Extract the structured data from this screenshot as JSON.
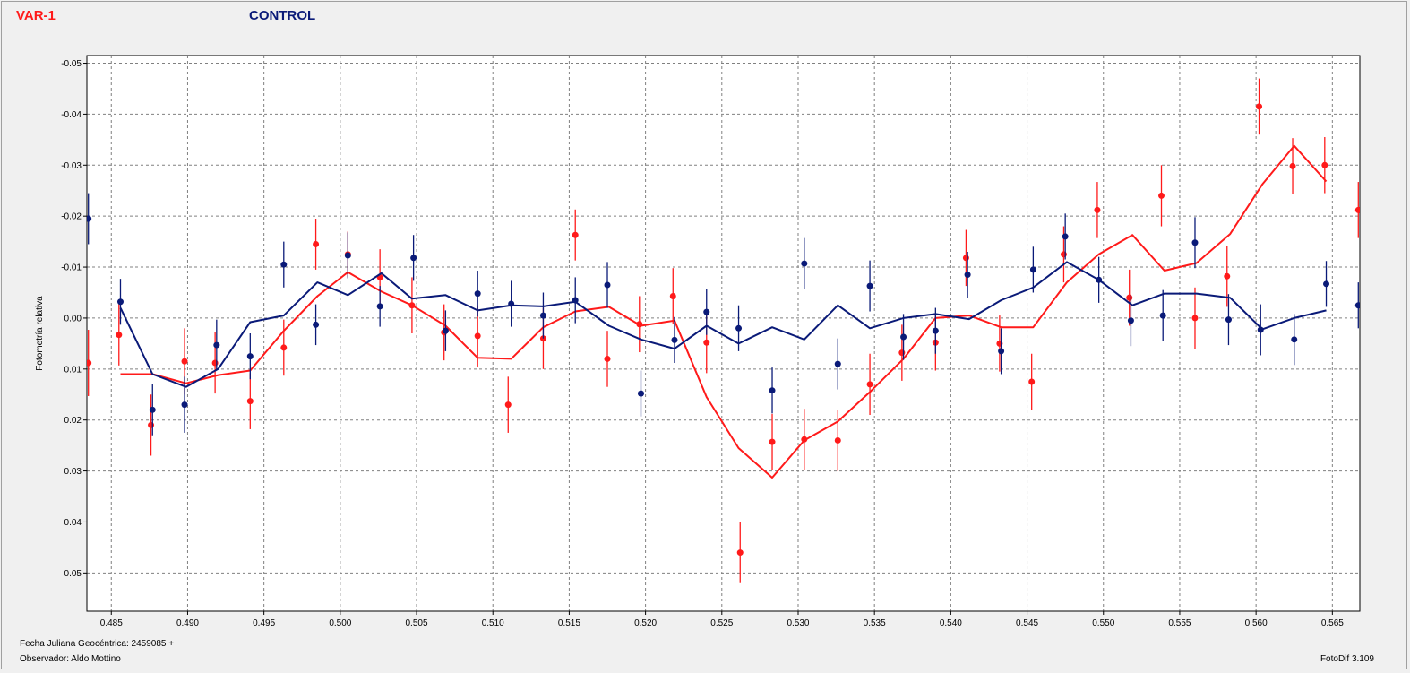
{
  "legend": {
    "var_label": "VAR-1",
    "control_label": "CONTROL"
  },
  "footer": {
    "date_label": "Fecha Juliana Geocéntrica: 2459085 +",
    "observer_label": "Observador: Aldo Mottino",
    "software": "FotoDif 3.109"
  },
  "colors": {
    "var": "#ff1a1a",
    "control": "#0a1a78",
    "background": "#f0f0f0",
    "plot_bg": "#ffffff",
    "grid": "#808080"
  },
  "chart_data": {
    "type": "scatter",
    "xlabel": "",
    "ylabel": "Fotometría relativa",
    "xlim": [
      0.4834,
      0.5668
    ],
    "ylim": [
      0.0575,
      -0.0515
    ],
    "y_inverted": true,
    "grid": true,
    "x_ticks": [
      0.485,
      0.49,
      0.495,
      0.5,
      0.505,
      0.51,
      0.515,
      0.52,
      0.525,
      0.53,
      0.535,
      0.54,
      0.545,
      0.55,
      0.555,
      0.56,
      0.565
    ],
    "x_tick_labels": [
      "0.485",
      "0.490",
      "0.495",
      "0.500",
      "0.505",
      "0.510",
      "0.515",
      "0.520",
      "0.525",
      "0.530",
      "0.535",
      "0.540",
      "0.545",
      "0.550",
      "0.555",
      "0.560",
      "0.565"
    ],
    "y_ticks": [
      -0.05,
      -0.04,
      -0.03,
      -0.02,
      -0.01,
      0.0,
      0.01,
      0.02,
      0.03,
      0.04,
      0.05
    ],
    "y_tick_labels": [
      "-0.05",
      "-0.04",
      "-0.03",
      "-0.02",
      "-0.01",
      "0.00",
      "0.01",
      "0.02",
      "0.03",
      "0.04",
      "0.05"
    ],
    "series": [
      {
        "name": "VAR-1",
        "color": "#ff1a1a",
        "points": [
          {
            "x": 0.4835,
            "y": 0.0088,
            "err": 0.0065
          },
          {
            "x": 0.4855,
            "y": 0.0033,
            "err": 0.006
          },
          {
            "x": 0.4876,
            "y": 0.021,
            "err": 0.006
          },
          {
            "x": 0.4898,
            "y": 0.0085,
            "err": 0.0065
          },
          {
            "x": 0.4918,
            "y": 0.0088,
            "err": 0.006
          },
          {
            "x": 0.4941,
            "y": 0.0163,
            "err": 0.0055
          },
          {
            "x": 0.4963,
            "y": 0.0058,
            "err": 0.0055
          },
          {
            "x": 0.4984,
            "y": -0.0145,
            "err": 0.005
          },
          {
            "x": 0.5005,
            "y": -0.0125,
            "err": 0.0045
          },
          {
            "x": 0.5026,
            "y": -0.008,
            "err": 0.0055
          },
          {
            "x": 0.5047,
            "y": -0.0025,
            "err": 0.0055
          },
          {
            "x": 0.5068,
            "y": 0.0028,
            "err": 0.0055
          },
          {
            "x": 0.509,
            "y": 0.0035,
            "err": 0.006
          },
          {
            "x": 0.511,
            "y": 0.017,
            "err": 0.0055
          },
          {
            "x": 0.5133,
            "y": 0.004,
            "err": 0.006
          },
          {
            "x": 0.5154,
            "y": -0.0163,
            "err": 0.005
          },
          {
            "x": 0.5175,
            "y": 0.008,
            "err": 0.0055
          },
          {
            "x": 0.5196,
            "y": 0.0012,
            "err": 0.0055
          },
          {
            "x": 0.5218,
            "y": -0.0043,
            "err": 0.0055
          },
          {
            "x": 0.524,
            "y": 0.0048,
            "err": 0.006
          },
          {
            "x": 0.5262,
            "y": 0.046,
            "err": 0.006
          },
          {
            "x": 0.5283,
            "y": 0.0243,
            "err": 0.0055
          },
          {
            "x": 0.5304,
            "y": 0.0238,
            "err": 0.006
          },
          {
            "x": 0.5326,
            "y": 0.024,
            "err": 0.006
          },
          {
            "x": 0.5347,
            "y": 0.013,
            "err": 0.006
          },
          {
            "x": 0.5368,
            "y": 0.0068,
            "err": 0.0055
          },
          {
            "x": 0.539,
            "y": 0.0048,
            "err": 0.0055
          },
          {
            "x": 0.541,
            "y": -0.0118,
            "err": 0.0055
          },
          {
            "x": 0.5432,
            "y": 0.005,
            "err": 0.0055
          },
          {
            "x": 0.5453,
            "y": 0.0125,
            "err": 0.0055
          },
          {
            "x": 0.5474,
            "y": -0.0125,
            "err": 0.0055
          },
          {
            "x": 0.5496,
            "y": -0.0212,
            "err": 0.0055
          },
          {
            "x": 0.5517,
            "y": -0.004,
            "err": 0.0055
          },
          {
            "x": 0.5538,
            "y": -0.024,
            "err": 0.006
          },
          {
            "x": 0.556,
            "y": 0.0,
            "err": 0.006
          },
          {
            "x": 0.5581,
            "y": -0.0082,
            "err": 0.006
          },
          {
            "x": 0.5602,
            "y": -0.0415,
            "err": 0.0055
          },
          {
            "x": 0.5624,
            "y": -0.0298,
            "err": 0.0055
          },
          {
            "x": 0.5645,
            "y": -0.03,
            "err": 0.0055
          },
          {
            "x": 0.5667,
            "y": -0.0212,
            "err": 0.0055
          }
        ],
        "line": [
          {
            "x": 0.4856,
            "y": 0.011
          },
          {
            "x": 0.4877,
            "y": 0.011
          },
          {
            "x": 0.4899,
            "y": 0.0128
          },
          {
            "x": 0.492,
            "y": 0.0112
          },
          {
            "x": 0.4941,
            "y": 0.0103
          },
          {
            "x": 0.4963,
            "y": 0.0025
          },
          {
            "x": 0.4985,
            "y": -0.0043
          },
          {
            "x": 0.5005,
            "y": -0.009
          },
          {
            "x": 0.5027,
            "y": -0.0052
          },
          {
            "x": 0.5047,
            "y": -0.0025
          },
          {
            "x": 0.5069,
            "y": 0.0015
          },
          {
            "x": 0.509,
            "y": 0.0078
          },
          {
            "x": 0.5112,
            "y": 0.008
          },
          {
            "x": 0.5133,
            "y": 0.0018
          },
          {
            "x": 0.5154,
            "y": -0.0013
          },
          {
            "x": 0.5176,
            "y": -0.0022
          },
          {
            "x": 0.5197,
            "y": 0.0015
          },
          {
            "x": 0.5219,
            "y": 0.0005
          },
          {
            "x": 0.524,
            "y": 0.0155
          },
          {
            "x": 0.5261,
            "y": 0.0255
          },
          {
            "x": 0.5283,
            "y": 0.0313
          },
          {
            "x": 0.5304,
            "y": 0.024
          },
          {
            "x": 0.5326,
            "y": 0.0203
          },
          {
            "x": 0.5347,
            "y": 0.0145
          },
          {
            "x": 0.5369,
            "y": 0.008
          },
          {
            "x": 0.539,
            "y": 0.0
          },
          {
            "x": 0.5412,
            "y": -0.0005
          },
          {
            "x": 0.5433,
            "y": 0.0018
          },
          {
            "x": 0.5454,
            "y": 0.0018
          },
          {
            "x": 0.5476,
            "y": -0.007
          },
          {
            "x": 0.5497,
            "y": -0.0125
          },
          {
            "x": 0.5519,
            "y": -0.0163
          },
          {
            "x": 0.554,
            "y": -0.0093
          },
          {
            "x": 0.5561,
            "y": -0.0108
          },
          {
            "x": 0.5583,
            "y": -0.0165
          },
          {
            "x": 0.5604,
            "y": -0.0262
          },
          {
            "x": 0.5625,
            "y": -0.0338
          },
          {
            "x": 0.5646,
            "y": -0.0268
          }
        ]
      },
      {
        "name": "CONTROL",
        "color": "#0a1a78",
        "points": [
          {
            "x": 0.4835,
            "y": -0.0195,
            "err": 0.005
          },
          {
            "x": 0.4856,
            "y": -0.0032,
            "err": 0.0045
          },
          {
            "x": 0.4877,
            "y": 0.018,
            "err": 0.005
          },
          {
            "x": 0.4898,
            "y": 0.017,
            "err": 0.0055
          },
          {
            "x": 0.4919,
            "y": 0.0053,
            "err": 0.005
          },
          {
            "x": 0.4941,
            "y": 0.0075,
            "err": 0.0045
          },
          {
            "x": 0.4963,
            "y": -0.0105,
            "err": 0.0045
          },
          {
            "x": 0.4984,
            "y": 0.0013,
            "err": 0.004
          },
          {
            "x": 0.5005,
            "y": -0.0123,
            "err": 0.0045
          },
          {
            "x": 0.5026,
            "y": -0.0023,
            "err": 0.004
          },
          {
            "x": 0.5048,
            "y": -0.0118,
            "err": 0.0045
          },
          {
            "x": 0.5069,
            "y": 0.0025,
            "err": 0.004
          },
          {
            "x": 0.509,
            "y": -0.0048,
            "err": 0.0045
          },
          {
            "x": 0.5112,
            "y": -0.0028,
            "err": 0.0045
          },
          {
            "x": 0.5133,
            "y": -0.0005,
            "err": 0.0045
          },
          {
            "x": 0.5154,
            "y": -0.0035,
            "err": 0.0045
          },
          {
            "x": 0.5175,
            "y": -0.0065,
            "err": 0.0045
          },
          {
            "x": 0.5197,
            "y": 0.0148,
            "err": 0.0045
          },
          {
            "x": 0.5219,
            "y": 0.0043,
            "err": 0.0045
          },
          {
            "x": 0.524,
            "y": -0.0012,
            "err": 0.0045
          },
          {
            "x": 0.5261,
            "y": 0.002,
            "err": 0.0045
          },
          {
            "x": 0.5283,
            "y": 0.0142,
            "err": 0.0045
          },
          {
            "x": 0.5304,
            "y": -0.0107,
            "err": 0.005
          },
          {
            "x": 0.5326,
            "y": 0.009,
            "err": 0.005
          },
          {
            "x": 0.5347,
            "y": -0.0063,
            "err": 0.005
          },
          {
            "x": 0.5369,
            "y": 0.0037,
            "err": 0.0045
          },
          {
            "x": 0.539,
            "y": 0.0025,
            "err": 0.0045
          },
          {
            "x": 0.5411,
            "y": -0.0085,
            "err": 0.0045
          },
          {
            "x": 0.5433,
            "y": 0.0065,
            "err": 0.0045
          },
          {
            "x": 0.5454,
            "y": -0.0095,
            "err": 0.0045
          },
          {
            "x": 0.5475,
            "y": -0.016,
            "err": 0.0045
          },
          {
            "x": 0.5497,
            "y": -0.0075,
            "err": 0.0045
          },
          {
            "x": 0.5518,
            "y": 0.0005,
            "err": 0.005
          },
          {
            "x": 0.5539,
            "y": -0.0005,
            "err": 0.005
          },
          {
            "x": 0.556,
            "y": -0.0148,
            "err": 0.005
          },
          {
            "x": 0.5582,
            "y": 0.0003,
            "err": 0.005
          },
          {
            "x": 0.5603,
            "y": 0.0023,
            "err": 0.005
          },
          {
            "x": 0.5625,
            "y": 0.0042,
            "err": 0.005
          },
          {
            "x": 0.5646,
            "y": -0.0067,
            "err": 0.0045
          },
          {
            "x": 0.5667,
            "y": -0.0025,
            "err": 0.0045
          }
        ],
        "line": [
          {
            "x": 0.4856,
            "y": -0.002
          },
          {
            "x": 0.4877,
            "y": 0.011
          },
          {
            "x": 0.4899,
            "y": 0.0135
          },
          {
            "x": 0.492,
            "y": 0.01
          },
          {
            "x": 0.4941,
            "y": 0.0008
          },
          {
            "x": 0.4963,
            "y": -0.0005
          },
          {
            "x": 0.4985,
            "y": -0.007
          },
          {
            "x": 0.5005,
            "y": -0.0045
          },
          {
            "x": 0.5027,
            "y": -0.0088
          },
          {
            "x": 0.5047,
            "y": -0.0038
          },
          {
            "x": 0.5069,
            "y": -0.0045
          },
          {
            "x": 0.509,
            "y": -0.0015
          },
          {
            "x": 0.5112,
            "y": -0.0025
          },
          {
            "x": 0.5133,
            "y": -0.0023
          },
          {
            "x": 0.5154,
            "y": -0.0032
          },
          {
            "x": 0.5176,
            "y": 0.0015
          },
          {
            "x": 0.5197,
            "y": 0.0042
          },
          {
            "x": 0.5219,
            "y": 0.006
          },
          {
            "x": 0.524,
            "y": 0.0015
          },
          {
            "x": 0.5261,
            "y": 0.005
          },
          {
            "x": 0.5283,
            "y": 0.0018
          },
          {
            "x": 0.5304,
            "y": 0.0042
          },
          {
            "x": 0.5326,
            "y": -0.0025
          },
          {
            "x": 0.5347,
            "y": 0.002
          },
          {
            "x": 0.5369,
            "y": 0.0
          },
          {
            "x": 0.539,
            "y": -0.0008
          },
          {
            "x": 0.5412,
            "y": 0.0002
          },
          {
            "x": 0.5433,
            "y": -0.0035
          },
          {
            "x": 0.5454,
            "y": -0.006
          },
          {
            "x": 0.5476,
            "y": -0.011
          },
          {
            "x": 0.5497,
            "y": -0.0075
          },
          {
            "x": 0.5519,
            "y": -0.0025
          },
          {
            "x": 0.554,
            "y": -0.0048
          },
          {
            "x": 0.5561,
            "y": -0.0048
          },
          {
            "x": 0.5583,
            "y": -0.004
          },
          {
            "x": 0.5604,
            "y": 0.0022
          },
          {
            "x": 0.5625,
            "y": 0.0
          },
          {
            "x": 0.5646,
            "y": -0.0015
          }
        ]
      }
    ]
  }
}
